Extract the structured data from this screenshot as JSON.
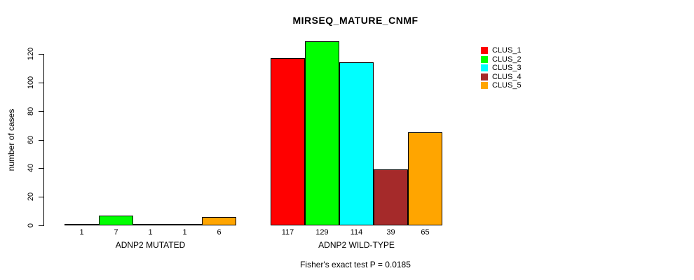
{
  "chart_data": {
    "type": "bar",
    "title": "MIRSEQ_MATURE_CNMF",
    "ylabel": "number of cases",
    "xlabel": "",
    "footnote": "Fisher's exact test P = 0.0185",
    "ylim": [
      0,
      120
    ],
    "yticks": [
      0,
      20,
      40,
      60,
      80,
      100,
      120
    ],
    "grid": false,
    "legend_position": "top-right",
    "series": [
      {
        "name": "CLUS_1",
        "color": "#FF0000"
      },
      {
        "name": "CLUS_2",
        "color": "#00FF00"
      },
      {
        "name": "CLUS_3",
        "color": "#00FFFF"
      },
      {
        "name": "CLUS_4",
        "color": "#A52A2A"
      },
      {
        "name": "CLUS_5",
        "color": "#FFA500"
      }
    ],
    "categories": [
      "ADNP2 MUTATED",
      "ADNP2 WILD-TYPE"
    ],
    "groups": [
      {
        "label": "ADNP2 MUTATED",
        "values": [
          1,
          7,
          1,
          1,
          6
        ]
      },
      {
        "label": "ADNP2 WILD-TYPE",
        "values": [
          117,
          129,
          114,
          39,
          65
        ]
      }
    ]
  }
}
